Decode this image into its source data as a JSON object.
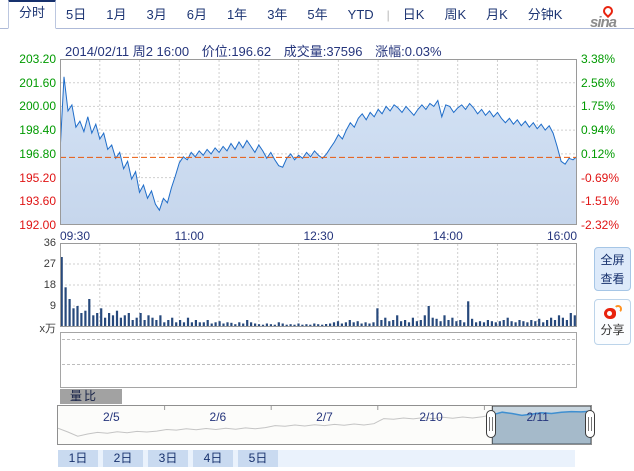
{
  "tabs": {
    "period": [
      "分时",
      "5日",
      "1月",
      "3月",
      "6月",
      "1年",
      "3年",
      "5年",
      "YTD"
    ],
    "active": "分时",
    "separator": "|",
    "kline": [
      "日K",
      "周K",
      "月K",
      "分钟K"
    ]
  },
  "logo": {
    "text": "sina"
  },
  "info": {
    "datetime": "2014/02/11 周2 16:00",
    "price": "价位:196.62",
    "volume": "成交量:37596",
    "change": "涨幅:0.03%"
  },
  "buttons": {
    "fullscreen_line1": "全屏",
    "fullscreen_line2": "查看",
    "share": "分享",
    "ratio_label": "量比",
    "days": [
      "1日",
      "2日",
      "3日",
      "4日",
      "5日"
    ]
  },
  "colors": {
    "up": "#009a00",
    "down": "#e01414",
    "price_line": "#1f6dc9",
    "area_top": "#d3e2f5",
    "area_bottom": "#c6d6ec",
    "prev_close_line": "#e8590c",
    "grid": "#cfcfcf",
    "volume_bar": "#27497c",
    "navy_text": "#25357c",
    "nav_selection_line": "#3f8fd0",
    "nav_unselected_line": "#c4c4c4"
  },
  "chart_data": [
    {
      "id": "price",
      "type": "line",
      "title": "分时 intraday price 2014/02/11",
      "x_tick_labels": [
        "09:30",
        "11:00",
        "12:30",
        "14:00",
        "16:00"
      ],
      "minutes_per_point": 3,
      "session": [
        "09:30",
        "16:00"
      ],
      "ylim": [
        192.0,
        203.2
      ],
      "y_ticks": [
        203.2,
        201.6,
        200.0,
        198.4,
        196.8,
        195.2,
        193.6,
        192.0
      ],
      "y_tick_labels": [
        "203.20",
        "201.60",
        "200.00",
        "198.40",
        "196.80",
        "195.20",
        "193.60",
        "192.00"
      ],
      "y2lim_pct": [
        -2.32,
        3.38
      ],
      "y2_tick_labels": [
        "3.38%",
        "2.56%",
        "1.75%",
        "0.94%",
        "0.12%",
        "-0.69%",
        "-1.51%",
        "-2.32%"
      ],
      "prev_close": 196.56,
      "last": 196.62,
      "change_pct": 0.03,
      "grid": true,
      "vertical_grid_intervals": 13,
      "values": [
        196.9,
        202.0,
        199.7,
        200.1,
        198.6,
        199.0,
        198.3,
        199.3,
        198.2,
        198.8,
        197.8,
        198.2,
        197.1,
        197.4,
        196.5,
        196.9,
        195.8,
        196.3,
        195.1,
        195.6,
        194.2,
        194.7,
        193.8,
        194.3,
        193.4,
        193.0,
        193.8,
        193.5,
        194.5,
        195.3,
        196.2,
        196.6,
        196.4,
        196.9,
        196.6,
        197.0,
        196.7,
        197.1,
        196.8,
        197.2,
        196.9,
        197.3,
        197.0,
        197.5,
        197.1,
        197.6,
        197.2,
        197.7,
        197.3,
        196.9,
        197.4,
        197.0,
        196.5,
        196.9,
        196.4,
        196.0,
        195.9,
        196.5,
        196.8,
        196.4,
        196.7,
        196.5,
        196.9,
        196.6,
        197.0,
        196.7,
        196.5,
        196.8,
        197.2,
        197.6,
        198.1,
        197.8,
        198.4,
        198.9,
        198.6,
        199.2,
        199.5,
        199.1,
        199.6,
        199.3,
        199.8,
        199.5,
        200.0,
        199.7,
        200.1,
        199.9,
        199.6,
        200.0,
        199.7,
        199.4,
        199.8,
        200.1,
        199.8,
        200.2,
        200.0,
        200.4,
        199.3,
        200.1,
        200.0,
        199.6,
        199.9,
        200.1,
        199.8,
        200.2,
        199.9,
        199.5,
        199.8,
        199.4,
        199.7,
        199.3,
        199.6,
        199.2,
        198.9,
        199.2,
        198.8,
        199.1,
        198.7,
        199.0,
        198.6,
        198.9,
        198.5,
        198.8,
        198.4,
        198.7,
        198.2,
        197.3,
        196.3,
        196.1,
        196.5,
        196.4,
        196.62
      ]
    },
    {
      "id": "volume",
      "type": "bar",
      "unit": "x万",
      "total": 37596,
      "ylim": [
        0,
        36
      ],
      "y_ticks": [
        36,
        27,
        18,
        9
      ],
      "y_tick_labels": [
        "36",
        "27",
        "18",
        "9"
      ],
      "grid": true,
      "values": [
        30,
        17,
        12,
        8,
        9,
        6,
        7,
        12,
        5,
        6,
        8,
        4,
        6,
        5,
        7,
        4,
        5,
        6,
        3,
        4,
        6,
        3,
        5,
        4,
        3,
        5,
        2,
        3,
        4,
        2,
        3,
        2,
        4,
        2,
        3,
        2,
        2,
        3,
        1.5,
        2,
        2.5,
        1.5,
        2,
        1.8,
        1.2,
        2,
        1.5,
        3,
        2,
        1.5,
        1.2,
        1,
        1.5,
        1.2,
        1,
        2,
        1.5,
        1,
        1.2,
        1,
        1.5,
        1,
        1.2,
        1,
        1.5,
        1.2,
        1,
        1.3,
        1.5,
        2,
        2.5,
        1.5,
        2,
        3,
        2,
        2.5,
        1.5,
        2,
        1.5,
        2,
        8,
        3,
        4,
        2.5,
        3,
        5,
        2.5,
        3,
        2,
        4,
        2.5,
        3,
        5,
        9,
        4,
        3.5,
        2.5,
        5,
        3,
        4,
        2.5,
        3,
        2,
        11,
        3.5,
        2,
        2.5,
        2,
        3,
        2.5,
        2,
        2.5,
        3,
        4,
        2.5,
        2,
        3,
        2.5,
        2,
        3,
        2.5,
        3.5,
        2,
        3,
        4,
        3,
        5,
        4,
        3,
        6,
        5
      ]
    },
    {
      "id": "navigator",
      "type": "area",
      "dates": [
        "2/5",
        "2/6",
        "2/7",
        "2/10",
        "2/11"
      ],
      "selected_date": "2/11",
      "selection_start_index": 44,
      "values_pct_from_top": [
        60,
        72,
        85,
        78,
        73,
        76,
        71,
        74,
        70,
        72,
        69,
        64,
        66,
        62,
        65,
        61,
        64,
        60,
        63,
        59,
        62,
        58,
        52,
        54,
        50,
        53,
        49,
        52,
        48,
        51,
        47,
        50,
        46,
        30,
        32,
        28,
        31,
        27,
        30,
        26,
        29,
        25,
        28,
        24,
        18,
        10,
        14,
        20,
        16,
        12,
        14,
        10,
        8,
        9,
        7
      ]
    }
  ]
}
